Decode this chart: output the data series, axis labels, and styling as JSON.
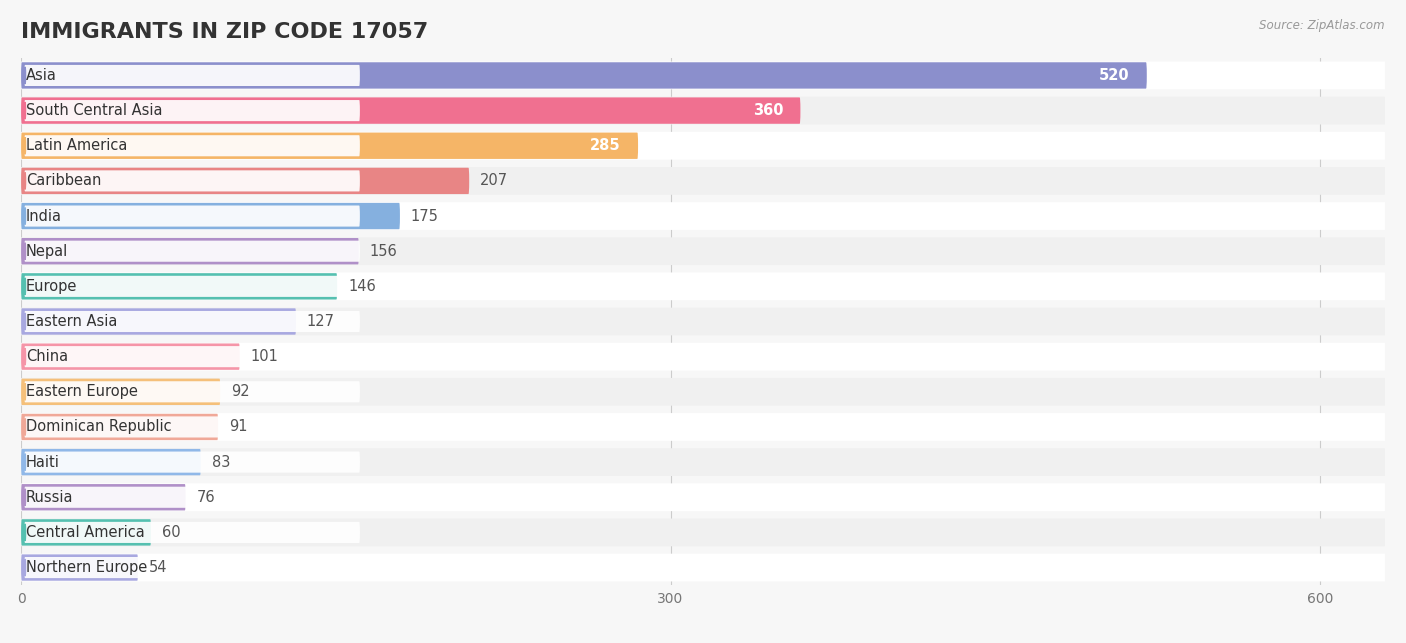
{
  "title": "IMMIGRANTS IN ZIP CODE 17057",
  "source": "Source: ZipAtlas.com",
  "categories": [
    "Asia",
    "South Central Asia",
    "Latin America",
    "Caribbean",
    "India",
    "Nepal",
    "Europe",
    "Eastern Asia",
    "China",
    "Eastern Europe",
    "Dominican Republic",
    "Haiti",
    "Russia",
    "Central America",
    "Northern Europe"
  ],
  "values": [
    520,
    360,
    285,
    207,
    175,
    156,
    146,
    127,
    101,
    92,
    91,
    83,
    76,
    60,
    54
  ],
  "bar_colors": [
    "#8b8fcc",
    "#f07090",
    "#f5b567",
    "#e88585",
    "#85b0df",
    "#b090c8",
    "#55c0b0",
    "#a8a8e0",
    "#f595a8",
    "#f5c07a",
    "#f0a898",
    "#90b8e8",
    "#b090c8",
    "#55c0b0",
    "#a8a8e0"
  ],
  "circle_colors": [
    "#8b8fcc",
    "#f07090",
    "#f5b567",
    "#e88585",
    "#85b0df",
    "#b090c8",
    "#55c0b0",
    "#a8a8e0",
    "#f595a8",
    "#f5c07a",
    "#f0a898",
    "#90b8e8",
    "#b090c8",
    "#55c0b0",
    "#a8a8e0"
  ],
  "xlim": [
    0,
    630
  ],
  "xticks": [
    0,
    300,
    600
  ],
  "background_color": "#f7f7f7",
  "row_bg_even": "#ffffff",
  "row_bg_odd": "#f0f0f0",
  "title_fontsize": 16,
  "label_fontsize": 10.5,
  "value_fontsize": 10.5
}
